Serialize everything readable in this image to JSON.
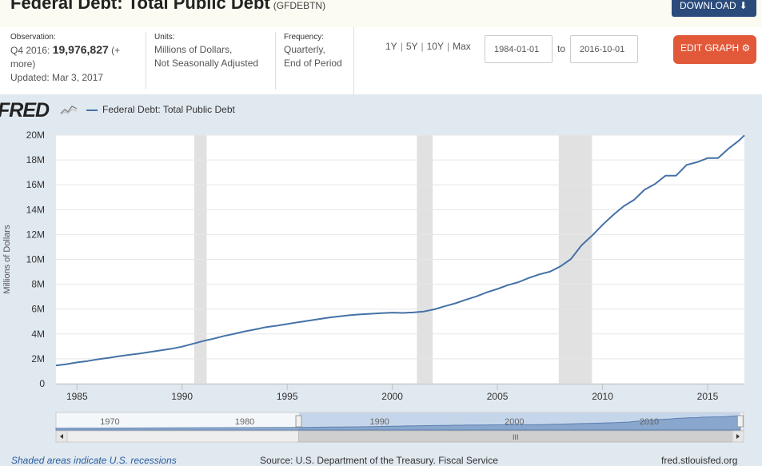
{
  "header": {
    "title": "Federal Debt: Total Public Debt",
    "series_id": "(GFDEBTN)",
    "download_label": "DOWNLOAD",
    "download_icon": "download-icon"
  },
  "info": {
    "observation_label": "Observation:",
    "observation_period": "Q4 2016:",
    "observation_value": "19,976,827",
    "observation_more": "(+ more)",
    "updated": "Updated: Mar 3, 2017",
    "units_label": "Units:",
    "units_line1": "Millions of Dollars,",
    "units_line2": "Not Seasonally Adjusted",
    "frequency_label": "Frequency:",
    "frequency_line1": "Quarterly,",
    "frequency_line2": "End of Period",
    "range_links": [
      "1Y",
      "5Y",
      "10Y",
      "Max"
    ],
    "date_from": "1984-01-01",
    "to_label": "to",
    "date_to": "2016-10-01",
    "edit_label": "EDIT GRAPH",
    "edit_icon": "gear-icon"
  },
  "chart_data": {
    "type": "line",
    "logo": "FRED",
    "series": [
      {
        "name": "Federal Debt: Total Public Debt",
        "color": "#4572a7",
        "points": [
          [
            1984.0,
            1.46
          ],
          [
            1984.5,
            1.57
          ],
          [
            1985.0,
            1.71
          ],
          [
            1985.5,
            1.82
          ],
          [
            1986.0,
            1.96
          ],
          [
            1986.5,
            2.08
          ],
          [
            1987.0,
            2.21
          ],
          [
            1987.5,
            2.32
          ],
          [
            1988.0,
            2.43
          ],
          [
            1988.5,
            2.55
          ],
          [
            1989.0,
            2.68
          ],
          [
            1989.5,
            2.81
          ],
          [
            1990.0,
            2.98
          ],
          [
            1990.5,
            3.2
          ],
          [
            1991.0,
            3.43
          ],
          [
            1991.5,
            3.62
          ],
          [
            1992.0,
            3.84
          ],
          [
            1992.5,
            4.02
          ],
          [
            1993.0,
            4.21
          ],
          [
            1993.5,
            4.37
          ],
          [
            1994.0,
            4.55
          ],
          [
            1994.5,
            4.66
          ],
          [
            1995.0,
            4.8
          ],
          [
            1995.5,
            4.94
          ],
          [
            1996.0,
            5.06
          ],
          [
            1996.5,
            5.19
          ],
          [
            1997.0,
            5.32
          ],
          [
            1997.5,
            5.42
          ],
          [
            1998.0,
            5.51
          ],
          [
            1998.5,
            5.58
          ],
          [
            1999.0,
            5.63
          ],
          [
            1999.5,
            5.68
          ],
          [
            2000.0,
            5.72
          ],
          [
            2000.5,
            5.69
          ],
          [
            2001.0,
            5.73
          ],
          [
            2001.5,
            5.81
          ],
          [
            2002.0,
            5.98
          ],
          [
            2002.5,
            6.23
          ],
          [
            2003.0,
            6.46
          ],
          [
            2003.5,
            6.76
          ],
          [
            2004.0,
            7.02
          ],
          [
            2004.5,
            7.35
          ],
          [
            2005.0,
            7.62
          ],
          [
            2005.5,
            7.93
          ],
          [
            2006.0,
            8.17
          ],
          [
            2006.5,
            8.51
          ],
          [
            2007.0,
            8.8
          ],
          [
            2007.5,
            9.01
          ],
          [
            2008.0,
            9.44
          ],
          [
            2008.5,
            10.03
          ],
          [
            2009.0,
            11.13
          ],
          [
            2009.5,
            11.91
          ],
          [
            2010.0,
            12.77
          ],
          [
            2010.5,
            13.56
          ],
          [
            2011.0,
            14.27
          ],
          [
            2011.5,
            14.79
          ],
          [
            2012.0,
            15.6
          ],
          [
            2012.5,
            16.07
          ],
          [
            2013.0,
            16.74
          ],
          [
            2013.5,
            16.74
          ],
          [
            2014.0,
            17.6
          ],
          [
            2014.5,
            17.82
          ],
          [
            2015.0,
            18.15
          ],
          [
            2015.5,
            18.15
          ],
          [
            2016.0,
            18.92
          ],
          [
            2016.5,
            19.57
          ],
          [
            2016.75,
            19.98
          ]
        ]
      }
    ],
    "recessions": [
      [
        1990.58,
        1991.17
      ],
      [
        2001.17,
        2001.92
      ],
      [
        2007.92,
        2009.5
      ]
    ],
    "xlim": [
      1984.0,
      2016.75
    ],
    "ylim": [
      0,
      20
    ],
    "x_ticks": [
      1985,
      1990,
      1995,
      2000,
      2005,
      2010,
      2015
    ],
    "y_ticks": [
      0,
      2,
      4,
      6,
      8,
      10,
      12,
      14,
      16,
      18,
      20
    ],
    "y_tick_labels": [
      "0",
      "2M",
      "4M",
      "6M",
      "8M",
      "10M",
      "12M",
      "14M",
      "16M",
      "18M",
      "20M"
    ],
    "ylabel": "Millions of Dollars",
    "grid": true,
    "legend": "top-left",
    "navigator": {
      "labels": [
        "1970",
        "1980",
        "1990",
        "2000",
        "2010"
      ],
      "label_years": [
        1970,
        1980,
        1990,
        2000,
        2010
      ],
      "xlim": [
        1966,
        2017
      ],
      "selected": [
        1984.0,
        2016.75
      ],
      "scroll_label": "III"
    }
  },
  "footer": {
    "recession_note": "Shaded areas indicate U.S. recessions",
    "source": "Source: U.S. Department of the Treasury. Fiscal Service",
    "site": "fred.stlouisfed.org"
  }
}
